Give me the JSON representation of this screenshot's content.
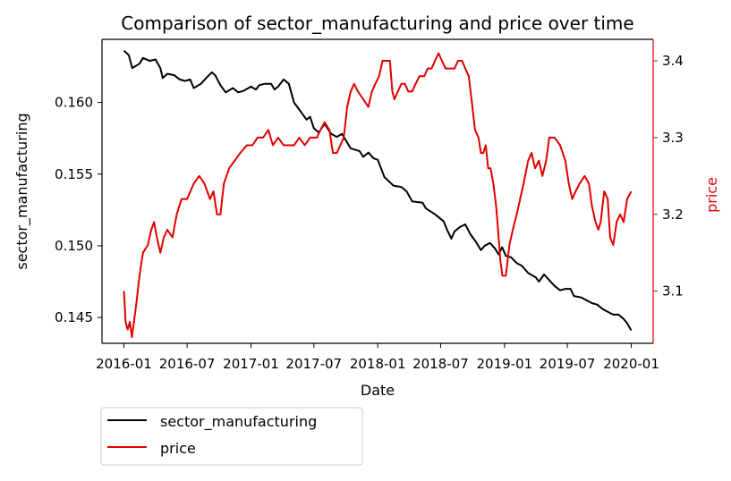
{
  "chart_data": {
    "type": "line",
    "title": "Comparison of sector_manufacturing and price over time",
    "xlabel": "Date",
    "ylabel_left": "sector_manufacturing",
    "ylabel_right": "price",
    "x_ticks": [
      "2016-01",
      "2016-07",
      "2017-01",
      "2017-07",
      "2018-01",
      "2018-07",
      "2019-01",
      "2019-07",
      "2020-01"
    ],
    "y_left_ticks": [
      "0.145",
      "0.150",
      "0.155",
      "0.160"
    ],
    "y_right_ticks": [
      "3.1",
      "3.2",
      "3.3",
      "3.4"
    ],
    "xlim": [
      "2015-10-30",
      "2020-03-04"
    ],
    "ylim_left": [
      0.1432,
      0.1644
    ],
    "ylim_right": [
      3.032,
      3.428
    ],
    "grid": false,
    "legend_position": "bottom-left outside",
    "series": [
      {
        "name": "sector_manufacturing",
        "axis": "left",
        "color": "#000000",
        "points": [
          [
            "2016-01-01",
            0.1636
          ],
          [
            "2016-01-15",
            0.1633
          ],
          [
            "2016-01-25",
            0.1624
          ],
          [
            "2016-02-15",
            0.1627
          ],
          [
            "2016-02-25",
            0.1631
          ],
          [
            "2016-03-15",
            0.1629
          ],
          [
            "2016-04-01",
            0.163
          ],
          [
            "2016-04-15",
            0.1624
          ],
          [
            "2016-04-22",
            0.1617
          ],
          [
            "2016-05-05",
            0.162
          ],
          [
            "2016-05-25",
            0.1619
          ],
          [
            "2016-06-10",
            0.1616
          ],
          [
            "2016-06-25",
            0.1615
          ],
          [
            "2016-07-10",
            0.1616
          ],
          [
            "2016-07-20",
            0.161
          ],
          [
            "2016-08-10",
            0.1613
          ],
          [
            "2016-08-25",
            0.1617
          ],
          [
            "2016-09-10",
            0.1621
          ],
          [
            "2016-09-20",
            0.1619
          ],
          [
            "2016-10-05",
            0.1612
          ],
          [
            "2016-10-20",
            0.1607
          ],
          [
            "2016-11-10",
            0.161
          ],
          [
            "2016-11-25",
            0.1607
          ],
          [
            "2016-12-10",
            0.1608
          ],
          [
            "2017-01-01",
            0.1611
          ],
          [
            "2017-01-15",
            0.1609
          ],
          [
            "2017-01-25",
            0.1612
          ],
          [
            "2017-02-10",
            0.1613
          ],
          [
            "2017-02-28",
            0.1613
          ],
          [
            "2017-03-10",
            0.1609
          ],
          [
            "2017-03-20",
            0.1611
          ],
          [
            "2017-04-05",
            0.1616
          ],
          [
            "2017-04-20",
            0.1613
          ],
          [
            "2017-05-05",
            0.16
          ],
          [
            "2017-05-20",
            0.1595
          ],
          [
            "2017-06-10",
            0.1588
          ],
          [
            "2017-06-20",
            0.159
          ],
          [
            "2017-07-01",
            0.1582
          ],
          [
            "2017-07-15",
            0.1579
          ],
          [
            "2017-08-01",
            0.1585
          ],
          [
            "2017-08-20",
            0.1578
          ],
          [
            "2017-09-05",
            0.1576
          ],
          [
            "2017-09-20",
            0.1578
          ],
          [
            "2017-10-15",
            0.1568
          ],
          [
            "2017-11-10",
            0.1566
          ],
          [
            "2017-11-20",
            0.1562
          ],
          [
            "2017-12-05",
            0.1565
          ],
          [
            "2017-12-20",
            0.1561
          ],
          [
            "2018-01-01",
            0.156
          ],
          [
            "2018-01-20",
            0.1548
          ],
          [
            "2018-02-15",
            0.1542
          ],
          [
            "2018-03-10",
            0.1541
          ],
          [
            "2018-03-25",
            0.1538
          ],
          [
            "2018-04-10",
            0.1531
          ],
          [
            "2018-05-10",
            0.153
          ],
          [
            "2018-05-20",
            0.1526
          ],
          [
            "2018-06-15",
            0.1522
          ],
          [
            "2018-07-10",
            0.1517
          ],
          [
            "2018-07-20",
            0.1511
          ],
          [
            "2018-08-01",
            0.1505
          ],
          [
            "2018-08-10",
            0.151
          ],
          [
            "2018-08-25",
            0.1513
          ],
          [
            "2018-09-10",
            0.1515
          ],
          [
            "2018-09-25",
            0.1508
          ],
          [
            "2018-10-10",
            0.1503
          ],
          [
            "2018-10-25",
            0.1497
          ],
          [
            "2018-11-05",
            0.15
          ],
          [
            "2018-11-20",
            0.1502
          ],
          [
            "2018-12-05",
            0.1498
          ],
          [
            "2018-12-15",
            0.1494
          ],
          [
            "2018-12-25",
            0.1499
          ],
          [
            "2019-01-05",
            0.1493
          ],
          [
            "2019-01-20",
            0.1492
          ],
          [
            "2019-02-05",
            0.1488
          ],
          [
            "2019-02-20",
            0.1486
          ],
          [
            "2019-03-10",
            0.1481
          ],
          [
            "2019-04-01",
            0.1478
          ],
          [
            "2019-04-10",
            0.1475
          ],
          [
            "2019-04-25",
            0.148
          ],
          [
            "2019-05-10",
            0.1476
          ],
          [
            "2019-05-25",
            0.1472
          ],
          [
            "2019-06-10",
            0.1469
          ],
          [
            "2019-06-25",
            0.147
          ],
          [
            "2019-07-10",
            0.147
          ],
          [
            "2019-07-20",
            0.1465
          ],
          [
            "2019-08-10",
            0.1464
          ],
          [
            "2019-08-25",
            0.1462
          ],
          [
            "2019-09-10",
            0.146
          ],
          [
            "2019-09-25",
            0.1459
          ],
          [
            "2019-10-10",
            0.1456
          ],
          [
            "2019-10-25",
            0.1454
          ],
          [
            "2019-11-10",
            0.1452
          ],
          [
            "2019-11-25",
            0.1452
          ],
          [
            "2019-12-10",
            0.1449
          ],
          [
            "2019-12-20",
            0.1446
          ],
          [
            "2020-01-01",
            0.1441
          ]
        ]
      },
      {
        "name": "price",
        "axis": "right",
        "color": "#e00000",
        "points": [
          [
            "2016-01-01",
            3.1
          ],
          [
            "2016-01-06",
            3.06
          ],
          [
            "2016-01-12",
            3.05
          ],
          [
            "2016-01-18",
            3.06
          ],
          [
            "2016-01-24",
            3.04
          ],
          [
            "2016-01-30",
            3.06
          ],
          [
            "2016-02-05",
            3.08
          ],
          [
            "2016-02-15",
            3.12
          ],
          [
            "2016-02-25",
            3.15
          ],
          [
            "2016-03-10",
            3.16
          ],
          [
            "2016-03-20",
            3.18
          ],
          [
            "2016-03-28",
            3.19
          ],
          [
            "2016-04-05",
            3.17
          ],
          [
            "2016-04-15",
            3.15
          ],
          [
            "2016-04-25",
            3.17
          ],
          [
            "2016-05-05",
            3.18
          ],
          [
            "2016-05-20",
            3.17
          ],
          [
            "2016-06-01",
            3.2
          ],
          [
            "2016-06-15",
            3.22
          ],
          [
            "2016-07-01",
            3.22
          ],
          [
            "2016-07-20",
            3.24
          ],
          [
            "2016-08-05",
            3.25
          ],
          [
            "2016-08-20",
            3.24
          ],
          [
            "2016-09-05",
            3.22
          ],
          [
            "2016-09-15",
            3.23
          ],
          [
            "2016-09-25",
            3.2
          ],
          [
            "2016-10-05",
            3.2
          ],
          [
            "2016-10-15",
            3.24
          ],
          [
            "2016-10-30",
            3.26
          ],
          [
            "2016-11-15",
            3.27
          ],
          [
            "2016-12-01",
            3.28
          ],
          [
            "2016-12-20",
            3.29
          ],
          [
            "2017-01-05",
            3.29
          ],
          [
            "2017-01-20",
            3.3
          ],
          [
            "2017-02-05",
            3.3
          ],
          [
            "2017-02-20",
            3.31
          ],
          [
            "2017-03-05",
            3.29
          ],
          [
            "2017-03-20",
            3.3
          ],
          [
            "2017-04-05",
            3.29
          ],
          [
            "2017-04-20",
            3.29
          ],
          [
            "2017-05-05",
            3.29
          ],
          [
            "2017-05-20",
            3.3
          ],
          [
            "2017-06-05",
            3.29
          ],
          [
            "2017-06-20",
            3.3
          ],
          [
            "2017-07-01",
            3.3
          ],
          [
            "2017-07-10",
            3.3
          ],
          [
            "2017-07-20",
            3.31
          ],
          [
            "2017-08-01",
            3.32
          ],
          [
            "2017-08-15",
            3.31
          ],
          [
            "2017-08-25",
            3.28
          ],
          [
            "2017-09-05",
            3.28
          ],
          [
            "2017-09-15",
            3.29
          ],
          [
            "2017-09-25",
            3.3
          ],
          [
            "2017-10-05",
            3.34
          ],
          [
            "2017-10-15",
            3.36
          ],
          [
            "2017-10-25",
            3.37
          ],
          [
            "2017-11-05",
            3.36
          ],
          [
            "2017-11-20",
            3.35
          ],
          [
            "2017-12-05",
            3.34
          ],
          [
            "2017-12-15",
            3.36
          ],
          [
            "2017-12-25",
            3.37
          ],
          [
            "2018-01-05",
            3.38
          ],
          [
            "2018-01-15",
            3.4
          ],
          [
            "2018-01-25",
            3.4
          ],
          [
            "2018-02-05",
            3.4
          ],
          [
            "2018-02-12",
            3.36
          ],
          [
            "2018-02-18",
            3.35
          ],
          [
            "2018-02-28",
            3.36
          ],
          [
            "2018-03-10",
            3.37
          ],
          [
            "2018-03-20",
            3.37
          ],
          [
            "2018-03-30",
            3.36
          ],
          [
            "2018-04-10",
            3.36
          ],
          [
            "2018-04-20",
            3.37
          ],
          [
            "2018-05-01",
            3.38
          ],
          [
            "2018-05-15",
            3.38
          ],
          [
            "2018-05-25",
            3.39
          ],
          [
            "2018-06-05",
            3.39
          ],
          [
            "2018-06-15",
            3.4
          ],
          [
            "2018-06-25",
            3.41
          ],
          [
            "2018-07-05",
            3.4
          ],
          [
            "2018-07-15",
            3.39
          ],
          [
            "2018-07-30",
            3.39
          ],
          [
            "2018-08-10",
            3.39
          ],
          [
            "2018-08-20",
            3.4
          ],
          [
            "2018-09-01",
            3.4
          ],
          [
            "2018-09-10",
            3.39
          ],
          [
            "2018-09-20",
            3.38
          ],
          [
            "2018-09-28",
            3.35
          ],
          [
            "2018-10-08",
            3.31
          ],
          [
            "2018-10-18",
            3.3
          ],
          [
            "2018-10-25",
            3.28
          ],
          [
            "2018-11-01",
            3.28
          ],
          [
            "2018-11-08",
            3.29
          ],
          [
            "2018-11-15",
            3.26
          ],
          [
            "2018-11-22",
            3.26
          ],
          [
            "2018-11-30",
            3.24
          ],
          [
            "2018-12-08",
            3.21
          ],
          [
            "2018-12-15",
            3.17
          ],
          [
            "2018-12-20",
            3.14
          ],
          [
            "2018-12-26",
            3.12
          ],
          [
            "2019-01-05",
            3.12
          ],
          [
            "2019-01-15",
            3.16
          ],
          [
            "2019-01-25",
            3.18
          ],
          [
            "2019-02-05",
            3.2
          ],
          [
            "2019-02-15",
            3.22
          ],
          [
            "2019-02-25",
            3.24
          ],
          [
            "2019-03-10",
            3.27
          ],
          [
            "2019-03-20",
            3.28
          ],
          [
            "2019-03-30",
            3.26
          ],
          [
            "2019-04-10",
            3.27
          ],
          [
            "2019-04-20",
            3.25
          ],
          [
            "2019-05-01",
            3.27
          ],
          [
            "2019-05-10",
            3.3
          ],
          [
            "2019-05-25",
            3.3
          ],
          [
            "2019-06-10",
            3.29
          ],
          [
            "2019-06-25",
            3.27
          ],
          [
            "2019-07-05",
            3.24
          ],
          [
            "2019-07-15",
            3.22
          ],
          [
            "2019-07-25",
            3.23
          ],
          [
            "2019-08-05",
            3.24
          ],
          [
            "2019-08-20",
            3.25
          ],
          [
            "2019-09-01",
            3.24
          ],
          [
            "2019-09-10",
            3.21
          ],
          [
            "2019-09-20",
            3.19
          ],
          [
            "2019-09-28",
            3.18
          ],
          [
            "2019-10-05",
            3.19
          ],
          [
            "2019-10-15",
            3.23
          ],
          [
            "2019-10-25",
            3.22
          ],
          [
            "2019-11-01",
            3.17
          ],
          [
            "2019-11-10",
            3.16
          ],
          [
            "2019-11-20",
            3.19
          ],
          [
            "2019-11-30",
            3.2
          ],
          [
            "2019-12-10",
            3.19
          ],
          [
            "2019-12-20",
            3.22
          ],
          [
            "2020-01-01",
            3.23
          ]
        ]
      }
    ]
  }
}
